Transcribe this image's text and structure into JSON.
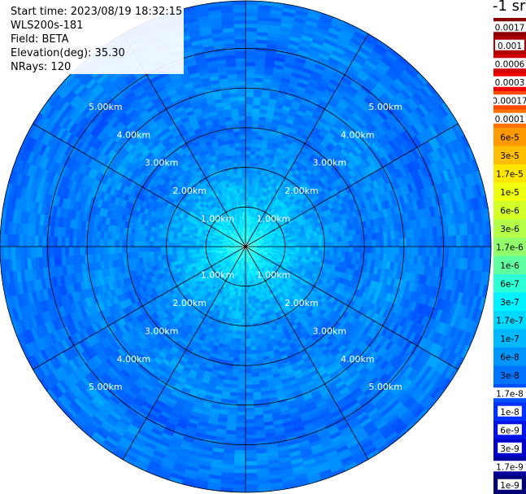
{
  "header": {
    "start_time": "Start time: 2023/08/19 18:32:15",
    "instrument": "WLS200s-181",
    "field": "Field: BETA",
    "elevation": "Elevation(deg): 35.30",
    "nrays": "NRays: 120"
  },
  "colorbar": {
    "unit_title": "-1 sr",
    "labels": [
      "0.0017",
      "0.001",
      "0.0006",
      "0.0003",
      "0.00017",
      "0.0001",
      "6e-5",
      "3e-5",
      "1.7e-5",
      "1e-5",
      "6e-6",
      "3e-6",
      "1.7e-6",
      "1e-6",
      "6e-7",
      "3e-7",
      "1.7e-7",
      "1e-7",
      "6e-8",
      "3e-8",
      "1.7e-8",
      "1e-8",
      "6e-9",
      "3e-9",
      "1.7e-9",
      "1e-9"
    ],
    "colors": [
      "#8a0000",
      "#b00000",
      "#d40000",
      "#f00000",
      "#ff4c00",
      "#ff7300",
      "#ff9a00",
      "#ffbe00",
      "#ffe500",
      "#f0ff10",
      "#d4ff28",
      "#b4ff48",
      "#90ff6a",
      "#60ffa0",
      "#2cffd6",
      "#00f2ff",
      "#00d8ff",
      "#00b8ff",
      "#0096ff",
      "#0074ff",
      "#0050ff",
      "#0030ff",
      "#0014e8",
      "#0000c8",
      "#00009c",
      "#000074"
    ]
  },
  "chart_data": {
    "type": "heatmap",
    "plot": "PPI",
    "field": "BETA",
    "elevation_deg": 35.3,
    "n_rays": 120,
    "range_rings_km": [
      1,
      2,
      3,
      4,
      5
    ],
    "ring_labels": [
      "1.00km",
      "2.00km",
      "3.00km",
      "4.00km",
      "5.00km"
    ],
    "max_range_km": 6.2,
    "color_scale": "log",
    "value_range": [
      1e-09,
      0.0017
    ],
    "radial_profile_log10_beta": [
      [
        0.2,
        -6.0
      ],
      [
        0.6,
        -6.3
      ],
      [
        1.0,
        -6.6
      ],
      [
        1.6,
        -6.8
      ],
      [
        2.2,
        -7.1
      ],
      [
        3.0,
        -7.3
      ],
      [
        3.6,
        -7.1
      ],
      [
        4.2,
        -7.2
      ],
      [
        4.8,
        -7.45
      ],
      [
        5.4,
        -7.15
      ],
      [
        6.0,
        -7.35
      ]
    ]
  }
}
